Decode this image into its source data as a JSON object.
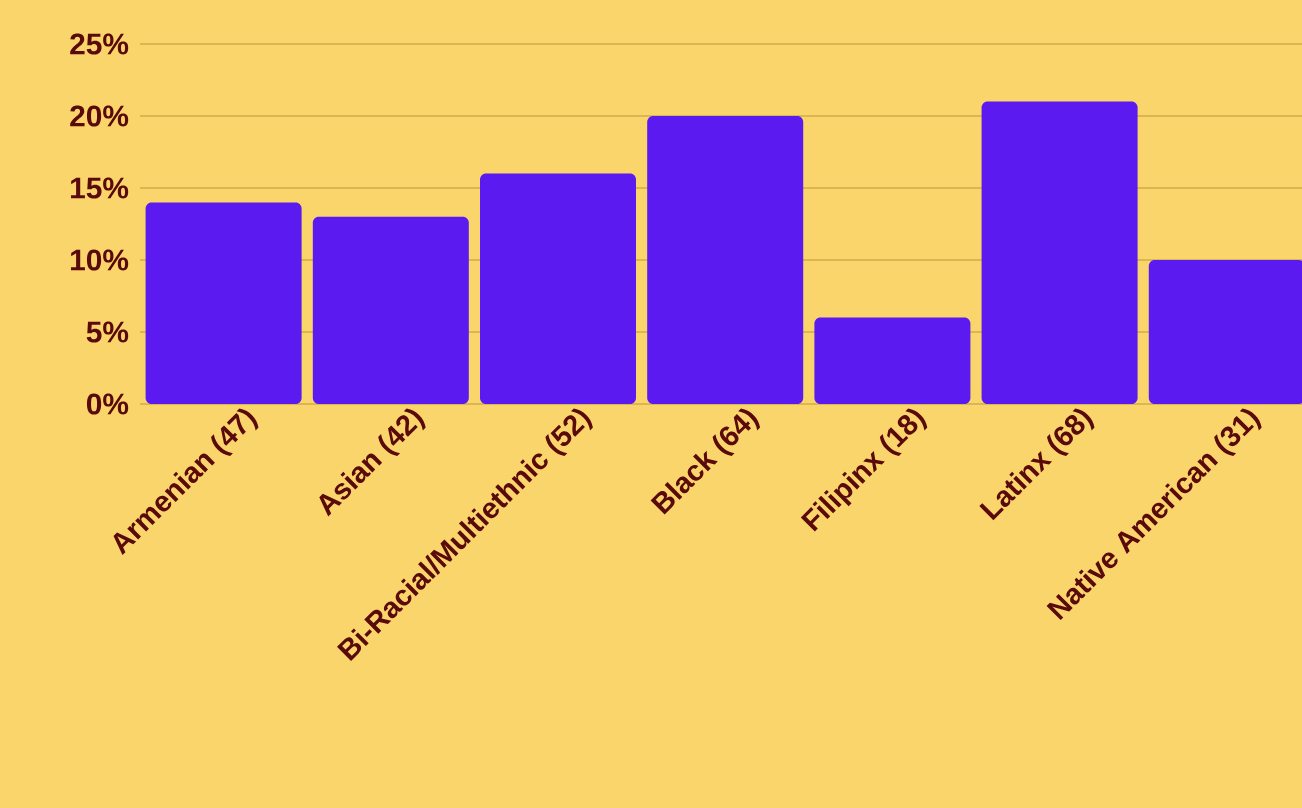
{
  "chart_data": {
    "type": "bar",
    "categories": [
      "Armenian (47)",
      "Asian (42)",
      "Bi-Racial/Multiethnic (52)",
      "Black (64)",
      "Filipinx (18)",
      "Latinx (68)",
      "Native American (31)"
    ],
    "values": [
      14,
      13,
      16,
      20,
      6,
      21,
      10
    ],
    "color": "#5b1aef",
    "ylim": [
      0,
      25
    ],
    "yticks": [
      {
        "value": 0,
        "label": "0%"
      },
      {
        "value": 5,
        "label": "5%"
      },
      {
        "value": 10,
        "label": "10%"
      },
      {
        "value": 15,
        "label": "15%"
      },
      {
        "value": 20,
        "label": "20%"
      },
      {
        "value": 25,
        "label": "25%"
      }
    ],
    "grid": "y"
  }
}
